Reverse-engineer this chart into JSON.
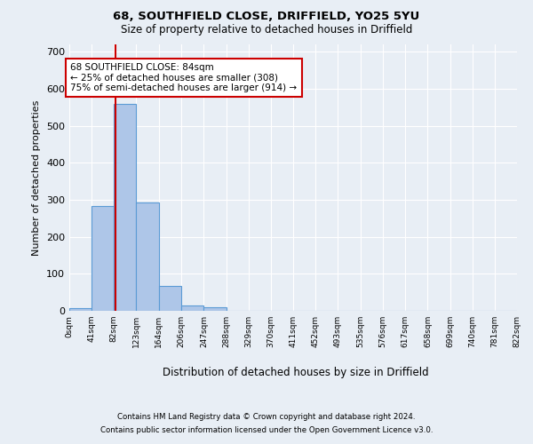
{
  "title_line1": "68, SOUTHFIELD CLOSE, DRIFFIELD, YO25 5YU",
  "title_line2": "Size of property relative to detached houses in Driffield",
  "xlabel": "Distribution of detached houses by size in Driffield",
  "ylabel": "Number of detached properties",
  "footer_line1": "Contains HM Land Registry data © Crown copyright and database right 2024.",
  "footer_line2": "Contains public sector information licensed under the Open Government Licence v3.0.",
  "bar_edges": [
    0,
    41,
    82,
    123,
    164,
    206,
    247,
    288,
    329,
    370,
    411,
    452,
    493,
    535,
    576,
    617,
    658,
    699,
    740,
    781,
    822
  ],
  "bar_heights": [
    7,
    283,
    560,
    293,
    67,
    14,
    9,
    0,
    0,
    0,
    0,
    0,
    0,
    0,
    0,
    0,
    0,
    0,
    0,
    0
  ],
  "bar_color": "#aec6e8",
  "bar_edge_color": "#5b9bd5",
  "bar_linewidth": 0.8,
  "property_sqm": 84,
  "red_line_color": "#cc0000",
  "annotation_text": "68 SOUTHFIELD CLOSE: 84sqm\n← 25% of detached houses are smaller (308)\n75% of semi-detached houses are larger (914) →",
  "annotation_box_color": "#ffffff",
  "annotation_box_edge_color": "#cc0000",
  "ylim": [
    0,
    720
  ],
  "yticks": [
    0,
    100,
    200,
    300,
    400,
    500,
    600,
    700
  ],
  "background_color": "#e8eef5",
  "plot_bg_color": "#e8eef5",
  "grid_color": "#ffffff",
  "tick_labels": [
    "0sqm",
    "41sqm",
    "82sqm",
    "123sqm",
    "164sqm",
    "206sqm",
    "247sqm",
    "288sqm",
    "329sqm",
    "370sqm",
    "411sqm",
    "452sqm",
    "493sqm",
    "535sqm",
    "576sqm",
    "617sqm",
    "658sqm",
    "699sqm",
    "740sqm",
    "781sqm",
    "822sqm"
  ]
}
